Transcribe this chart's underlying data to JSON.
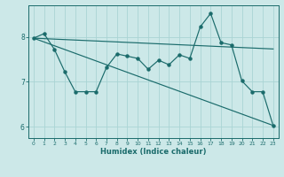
{
  "xlabel": "Humidex (Indice chaleur)",
  "bg_color": "#cce8e8",
  "grid_color": "#aad4d4",
  "line_color": "#1a6b6b",
  "xlim": [
    -0.5,
    23.5
  ],
  "ylim": [
    5.75,
    8.7
  ],
  "yticks": [
    6,
    7,
    8
  ],
  "xticks": [
    0,
    1,
    2,
    3,
    4,
    5,
    6,
    7,
    8,
    9,
    10,
    11,
    12,
    13,
    14,
    15,
    16,
    17,
    18,
    19,
    20,
    21,
    22,
    23
  ],
  "data_x": [
    0,
    1,
    2,
    3,
    4,
    5,
    6,
    7,
    8,
    9,
    10,
    11,
    12,
    13,
    14,
    15,
    16,
    17,
    18,
    19,
    20,
    21,
    22,
    23
  ],
  "data_y": [
    7.97,
    8.07,
    7.72,
    7.22,
    6.78,
    6.78,
    6.78,
    7.32,
    7.62,
    7.57,
    7.52,
    7.28,
    7.48,
    7.38,
    7.6,
    7.52,
    8.22,
    8.52,
    7.87,
    7.82,
    7.02,
    6.78,
    6.78,
    6.03
  ],
  "trend1_x": [
    0,
    23
  ],
  "trend1_y": [
    7.97,
    7.73
  ],
  "trend2_x": [
    0,
    23
  ],
  "trend2_y": [
    7.97,
    6.03
  ]
}
